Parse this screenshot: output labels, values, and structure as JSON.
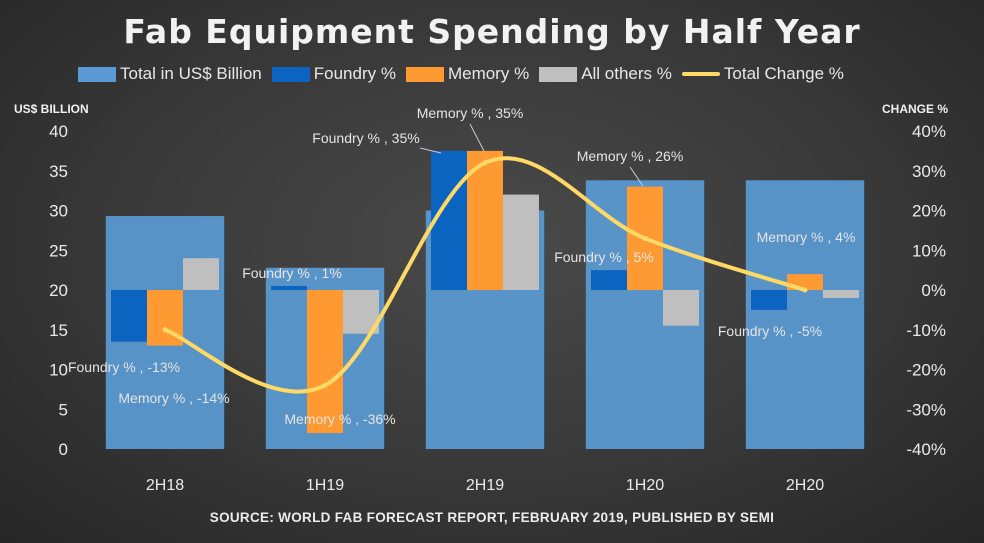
{
  "title": "Fab Equipment Spending by Half Year",
  "left_axis_title": "US$ BILLION",
  "right_axis_title": "CHANGE %",
  "source": "SOURCE: WORLD FAB FORECAST REPORT, FEBRUARY 2019, PUBLISHED BY  SEMI",
  "legend": [
    {
      "label": "Total in US$ Billion",
      "color": "#5b9bd5",
      "kind": "box"
    },
    {
      "label": "Foundry %",
      "color": "#0a64c0",
      "kind": "box"
    },
    {
      "label": "Memory %",
      "color": "#ff9a32",
      "kind": "box"
    },
    {
      "label": "All others %",
      "color": "#bfbfbf",
      "kind": "box"
    },
    {
      "label": "Total Change %",
      "color": "#ffd966",
      "kind": "line"
    }
  ],
  "chart_data": {
    "type": "bar",
    "categories": [
      "2H18",
      "1H19",
      "2H19",
      "1H20",
      "2H20"
    ],
    "ylim_left": [
      0,
      40
    ],
    "yticks_left": [
      "0",
      "5",
      "10",
      "15",
      "20",
      "25",
      "30",
      "35",
      "40"
    ],
    "ylim_right": [
      -40,
      40
    ],
    "yticks_right": [
      "-40%",
      "-30%",
      "-20%",
      "-10%",
      "0%",
      "10%",
      "20%",
      "30%",
      "40%"
    ],
    "series": [
      {
        "name": "Total in US$ Billion",
        "axis": "left",
        "color": "#5b9bd5",
        "values": [
          29.3,
          22.8,
          30.0,
          33.8,
          33.8
        ]
      },
      {
        "name": "Foundry %",
        "axis": "right",
        "color": "#0a64c0",
        "values": [
          -13,
          1,
          35,
          5,
          -5
        ]
      },
      {
        "name": "Memory %",
        "axis": "right",
        "color": "#ff9a32",
        "values": [
          -14,
          -36,
          35,
          26,
          4
        ]
      },
      {
        "name": "All others %",
        "axis": "right",
        "color": "#bfbfbf",
        "values": [
          8,
          -11,
          24,
          -9,
          -2
        ]
      },
      {
        "name": "Total Change %",
        "axis": "right",
        "type": "line",
        "color": "#ffd966",
        "values": [
          -10,
          -24,
          32,
          13,
          0
        ]
      }
    ],
    "data_labels": [
      {
        "text": "Foundry % , -13%",
        "category": "2H18",
        "series": "Foundry %"
      },
      {
        "text": "Memory % , -14%",
        "category": "2H18",
        "series": "Memory %"
      },
      {
        "text": "Foundry % , 1%",
        "category": "1H19",
        "series": "Foundry %"
      },
      {
        "text": "Memory % , -36%",
        "category": "1H19",
        "series": "Memory %"
      },
      {
        "text": "Foundry % , 35%",
        "category": "2H19",
        "series": "Foundry %"
      },
      {
        "text": "Memory % , 35%",
        "category": "2H19",
        "series": "Memory %"
      },
      {
        "text": "Foundry % , 5%",
        "category": "1H20",
        "series": "Foundry %"
      },
      {
        "text": "Memory % , 26%",
        "category": "1H20",
        "series": "Memory %"
      },
      {
        "text": "Foundry % , -5%",
        "category": "2H20",
        "series": "Foundry %"
      },
      {
        "text": "Memory % , 4%",
        "category": "2H20",
        "series": "Memory %"
      }
    ]
  }
}
